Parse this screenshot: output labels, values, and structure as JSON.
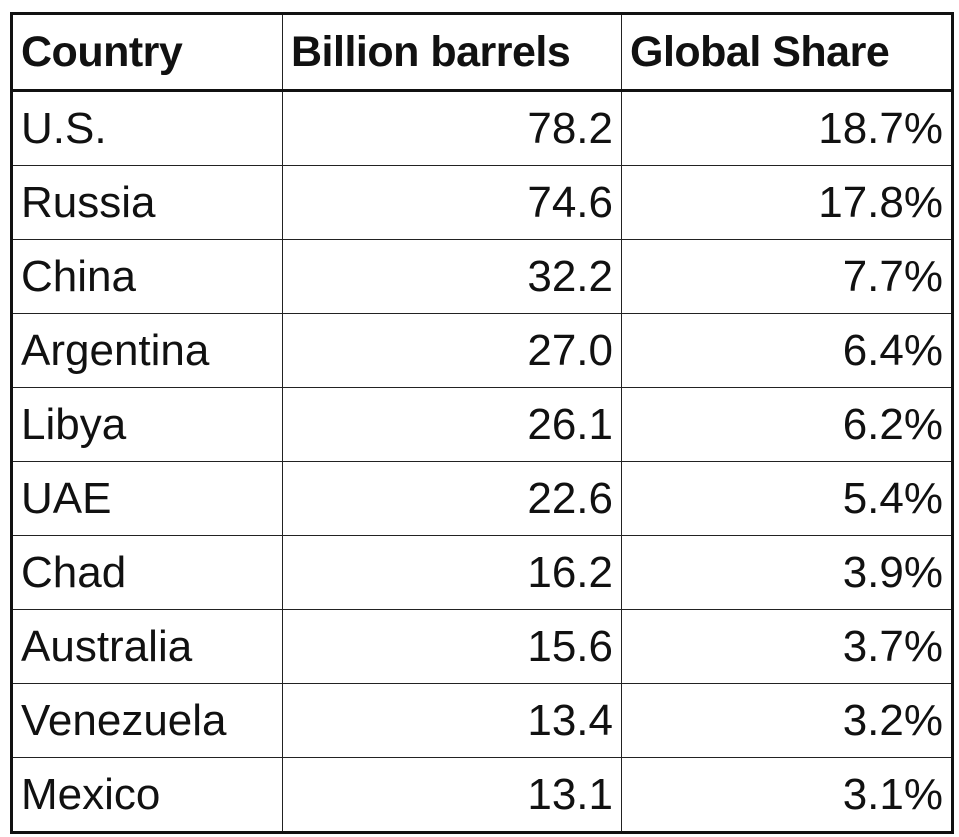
{
  "table": {
    "columns": [
      "Country",
      "Billion barrels",
      "Global Share"
    ],
    "rows": [
      [
        "U.S.",
        "78.2",
        "18.7%"
      ],
      [
        "Russia",
        "74.6",
        "17.8%"
      ],
      [
        "China",
        "32.2",
        "7.7%"
      ],
      [
        "Argentina",
        "27.0",
        "6.4%"
      ],
      [
        "Libya",
        "26.1",
        "6.2%"
      ],
      [
        "UAE",
        "22.6",
        "5.4%"
      ],
      [
        "Chad",
        "16.2",
        "3.9%"
      ],
      [
        "Australia",
        "15.6",
        "3.7%"
      ],
      [
        "Venezuela",
        "13.4",
        "3.2%"
      ],
      [
        "Mexico",
        "13.1",
        "3.1%"
      ]
    ]
  },
  "colors": {
    "border": "#222222",
    "text": "#111111",
    "background": "#ffffff"
  }
}
